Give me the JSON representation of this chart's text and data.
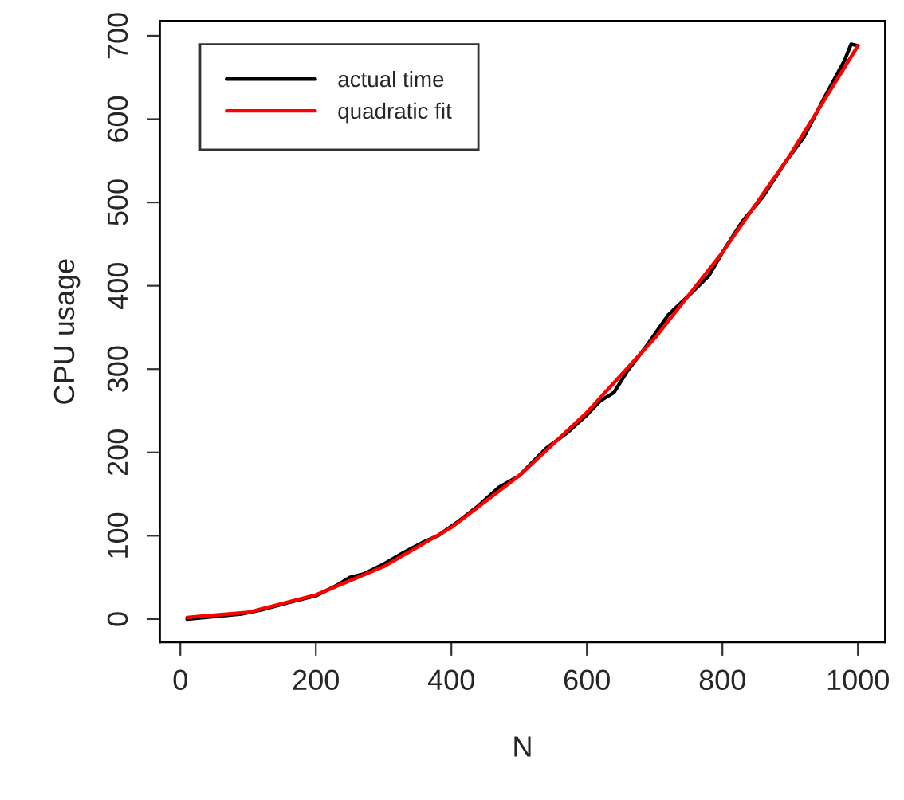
{
  "chart_data": {
    "type": "line",
    "xlabel": "N",
    "ylabel": "CPU usage",
    "xlim": [
      -30,
      1040
    ],
    "ylim": [
      -28,
      718
    ],
    "xticks": [
      0,
      200,
      400,
      600,
      800,
      1000
    ],
    "yticks": [
      0,
      100,
      200,
      300,
      400,
      500,
      600,
      700
    ],
    "legend": "top left",
    "grid": false,
    "line_style": "solid",
    "marker": "none",
    "series": [
      {
        "name": "actual time",
        "color": "#000000",
        "x": [
          10,
          50,
          90,
          120,
          160,
          200,
          230,
          250,
          270,
          300,
          330,
          360,
          380,
          410,
          440,
          470,
          500,
          540,
          570,
          600,
          620,
          640,
          660,
          690,
          720,
          750,
          780,
          800,
          830,
          860,
          890,
          920,
          950,
          980,
          990,
          1000
        ],
        "values": [
          0,
          3,
          6,
          11,
          20,
          28,
          40,
          50,
          54,
          66,
          80,
          93,
          100,
          117,
          136,
          158,
          172,
          205,
          223,
          245,
          262,
          272,
          298,
          330,
          365,
          388,
          412,
          440,
          478,
          507,
          545,
          578,
          625,
          670,
          690,
          688
        ]
      },
      {
        "name": "quadratic fit",
        "color": "#ff0000",
        "x": [
          10,
          100,
          200,
          300,
          400,
          500,
          600,
          700,
          800,
          900,
          1000
        ],
        "values": [
          2,
          8,
          29,
          63,
          110,
          172,
          248,
          337,
          440,
          557,
          688
        ]
      }
    ]
  }
}
